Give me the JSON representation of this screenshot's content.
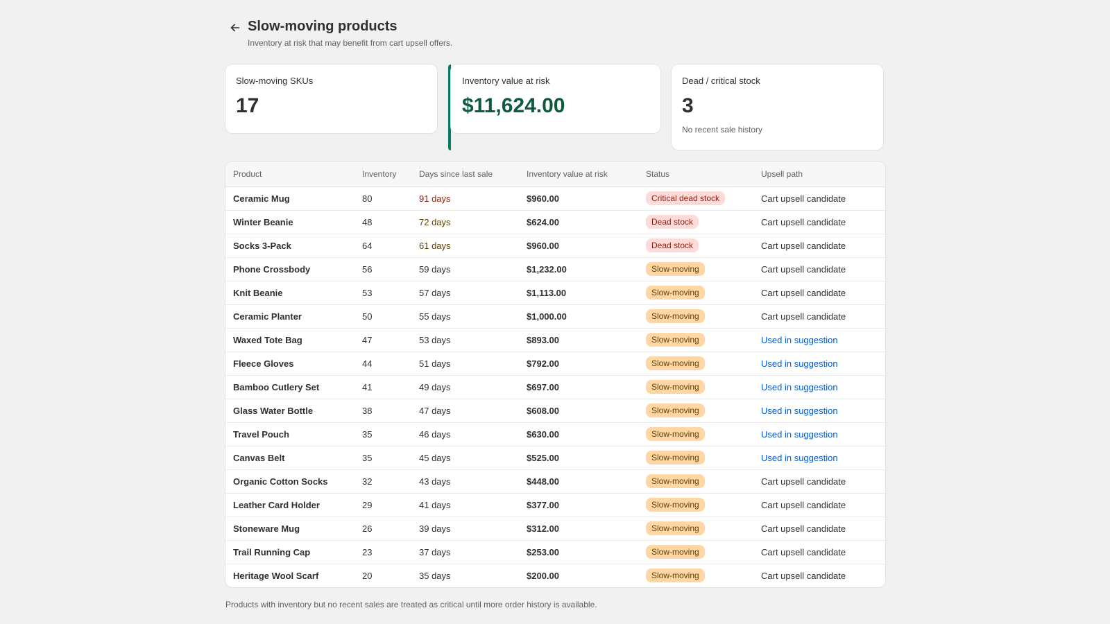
{
  "header": {
    "title": "Slow-moving products",
    "subtitle": "Inventory at risk that may benefit from cart upsell offers."
  },
  "stats": {
    "skus": {
      "label": "Slow-moving SKUs",
      "value": "17"
    },
    "value_at_risk": {
      "label": "Inventory value at risk",
      "value": "$11,624.00"
    },
    "dead": {
      "label": "Dead / critical stock",
      "value": "3",
      "note": "No recent sale history"
    }
  },
  "table": {
    "columns": [
      "Product",
      "Inventory",
      "Days since last sale",
      "Inventory value at risk",
      "Status",
      "Upsell path"
    ],
    "rows": [
      {
        "product": "Ceramic Mug",
        "inventory": "80",
        "days": "91 days",
        "days_level": "critical",
        "value": "$960.00",
        "status": "Critical dead stock",
        "status_type": "critical",
        "upsell": "Cart upsell candidate",
        "upsell_link": false
      },
      {
        "product": "Winter Beanie",
        "inventory": "48",
        "days": "72 days",
        "days_level": "dead",
        "value": "$624.00",
        "status": "Dead stock",
        "status_type": "critical",
        "upsell": "Cart upsell candidate",
        "upsell_link": false
      },
      {
        "product": "Socks 3-Pack",
        "inventory": "64",
        "days": "61 days",
        "days_level": "dead",
        "value": "$960.00",
        "status": "Dead stock",
        "status_type": "critical",
        "upsell": "Cart upsell candidate",
        "upsell_link": false
      },
      {
        "product": "Phone Crossbody",
        "inventory": "56",
        "days": "59 days",
        "days_level": "normal",
        "value": "$1,232.00",
        "status": "Slow-moving",
        "status_type": "slow",
        "upsell": "Cart upsell candidate",
        "upsell_link": false
      },
      {
        "product": "Knit Beanie",
        "inventory": "53",
        "days": "57 days",
        "days_level": "normal",
        "value": "$1,113.00",
        "status": "Slow-moving",
        "status_type": "slow",
        "upsell": "Cart upsell candidate",
        "upsell_link": false
      },
      {
        "product": "Ceramic Planter",
        "inventory": "50",
        "days": "55 days",
        "days_level": "normal",
        "value": "$1,000.00",
        "status": "Slow-moving",
        "status_type": "slow",
        "upsell": "Cart upsell candidate",
        "upsell_link": false
      },
      {
        "product": "Waxed Tote Bag",
        "inventory": "47",
        "days": "53 days",
        "days_level": "normal",
        "value": "$893.00",
        "status": "Slow-moving",
        "status_type": "slow",
        "upsell": "Used in suggestion",
        "upsell_link": true
      },
      {
        "product": "Fleece Gloves",
        "inventory": "44",
        "days": "51 days",
        "days_level": "normal",
        "value": "$792.00",
        "status": "Slow-moving",
        "status_type": "slow",
        "upsell": "Used in suggestion",
        "upsell_link": true
      },
      {
        "product": "Bamboo Cutlery Set",
        "inventory": "41",
        "days": "49 days",
        "days_level": "normal",
        "value": "$697.00",
        "status": "Slow-moving",
        "status_type": "slow",
        "upsell": "Used in suggestion",
        "upsell_link": true
      },
      {
        "product": "Glass Water Bottle",
        "inventory": "38",
        "days": "47 days",
        "days_level": "normal",
        "value": "$608.00",
        "status": "Slow-moving",
        "status_type": "slow",
        "upsell": "Used in suggestion",
        "upsell_link": true
      },
      {
        "product": "Travel Pouch",
        "inventory": "35",
        "days": "46 days",
        "days_level": "normal",
        "value": "$630.00",
        "status": "Slow-moving",
        "status_type": "slow",
        "upsell": "Used in suggestion",
        "upsell_link": true
      },
      {
        "product": "Canvas Belt",
        "inventory": "35",
        "days": "45 days",
        "days_level": "normal",
        "value": "$525.00",
        "status": "Slow-moving",
        "status_type": "slow",
        "upsell": "Used in suggestion",
        "upsell_link": true
      },
      {
        "product": "Organic Cotton Socks",
        "inventory": "32",
        "days": "43 days",
        "days_level": "normal",
        "value": "$448.00",
        "status": "Slow-moving",
        "status_type": "slow",
        "upsell": "Cart upsell candidate",
        "upsell_link": false
      },
      {
        "product": "Leather Card Holder",
        "inventory": "29",
        "days": "41 days",
        "days_level": "normal",
        "value": "$377.00",
        "status": "Slow-moving",
        "status_type": "slow",
        "upsell": "Cart upsell candidate",
        "upsell_link": false
      },
      {
        "product": "Stoneware Mug",
        "inventory": "26",
        "days": "39 days",
        "days_level": "normal",
        "value": "$312.00",
        "status": "Slow-moving",
        "status_type": "slow",
        "upsell": "Cart upsell candidate",
        "upsell_link": false
      },
      {
        "product": "Trail Running Cap",
        "inventory": "23",
        "days": "37 days",
        "days_level": "normal",
        "value": "$253.00",
        "status": "Slow-moving",
        "status_type": "slow",
        "upsell": "Cart upsell candidate",
        "upsell_link": false
      },
      {
        "product": "Heritage Wool Scarf",
        "inventory": "20",
        "days": "35 days",
        "days_level": "normal",
        "value": "$200.00",
        "status": "Slow-moving",
        "status_type": "slow",
        "upsell": "Cart upsell candidate",
        "upsell_link": false
      }
    ]
  },
  "footer": {
    "note": "Products with inventory but no recent sales are treated as critical until more order history is available."
  },
  "icons": {
    "back": "arrow-left-icon"
  },
  "colors": {
    "accent": "#047b5d",
    "value_green": "#0d5b3c",
    "critical_badge_bg": "#fedad9",
    "slow_badge_bg": "#ffd6a4",
    "link": "#005bd3"
  }
}
